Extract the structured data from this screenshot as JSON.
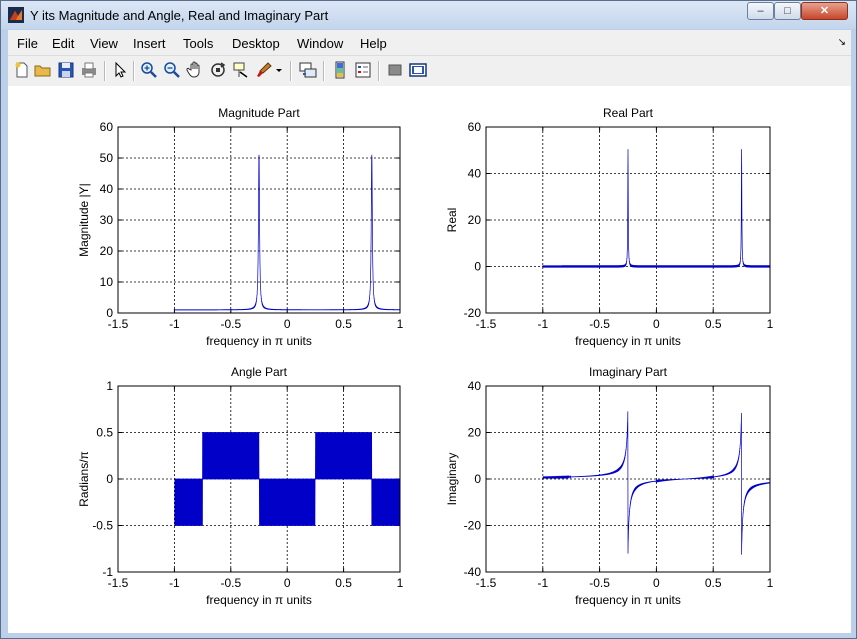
{
  "window": {
    "title": "Y its Magnitude and Angle, Real and Imaginary Part",
    "minimize_label": "–",
    "maximize_label": "□",
    "close_label": "✕"
  },
  "menu": {
    "items": [
      "File",
      "Edit",
      "View",
      "Insert",
      "Tools",
      "Desktop",
      "Window",
      "Help"
    ],
    "overflow_arrow": "↘"
  },
  "toolbar": {
    "icons": [
      "new-figure-icon",
      "open-file-icon",
      "save-icon",
      "print-icon",
      "edit-plot-arrow-icon",
      "zoom-in-icon",
      "zoom-out-icon",
      "pan-hand-icon",
      "rotate-3d-icon",
      "data-cursor-icon",
      "brush-icon",
      "brush-dropdown-icon",
      "link-plot-icon",
      "insert-colorbar-icon",
      "insert-legend-icon",
      "hide-plot-tools-icon",
      "show-plot-tools-icon"
    ]
  },
  "colors": {
    "trace": "#0000c8",
    "grid": "#000000",
    "titlebar": "#c9d9ee"
  },
  "chart_data": [
    {
      "type": "line",
      "title": "Magnitude Part",
      "xlabel": "frequency in π units",
      "ylabel": "Magnitude  |Y|",
      "xlim": [
        -1.5,
        1
      ],
      "ylim": [
        0,
        60
      ],
      "xticks": [
        "-1.5",
        "-1",
        "-0.5",
        "0",
        "0.5",
        "1"
      ],
      "yticks": [
        "0",
        "10",
        "20",
        "30",
        "40",
        "50",
        "60"
      ],
      "grid": true,
      "series": [
        {
          "kind": "magnitude",
          "x_range": [
            -1,
            1
          ],
          "peaks_at": [
            -0.25,
            0.75
          ],
          "peak_value": 51,
          "baseline": 1
        }
      ]
    },
    {
      "type": "line",
      "title": "Real Part",
      "xlabel": "frequency in π units",
      "ylabel": "Real",
      "xlim": [
        -1.5,
        1
      ],
      "ylim": [
        -20,
        60
      ],
      "xticks": [
        "-1.5",
        "-1",
        "-0.5",
        "0",
        "0.5",
        "1"
      ],
      "yticks": [
        "-20",
        "0",
        "20",
        "40",
        "60"
      ],
      "grid": true,
      "series": [
        {
          "kind": "real",
          "x_range": [
            -1,
            1
          ],
          "peaks_at": [
            -0.25,
            0.75
          ],
          "peak_value": 51,
          "baseline": 0.5
        }
      ]
    },
    {
      "type": "line",
      "title": "Angle Part",
      "xlabel": "frequency in π units",
      "ylabel": "Radians/π",
      "xlim": [
        -1.5,
        1
      ],
      "ylim": [
        -1,
        1
      ],
      "xticks": [
        "-1.5",
        "-1",
        "-0.5",
        "0",
        "0.5",
        "1"
      ],
      "yticks": [
        "-1",
        "-0.5",
        "0",
        "0.5",
        "1"
      ],
      "grid": true,
      "series": [
        {
          "kind": "angle",
          "x_range": [
            -1,
            1
          ],
          "levels": [
            -0.5,
            0.5
          ],
          "negative_bands": [
            [
              -1,
              -0.75
            ],
            [
              -0.25,
              0.25
            ],
            [
              0.75,
              1
            ]
          ],
          "positive_bands": [
            [
              -0.75,
              -0.25
            ],
            [
              0.25,
              0.75
            ]
          ]
        }
      ]
    },
    {
      "type": "line",
      "title": "Imaginary Part",
      "xlabel": "frequency in π units",
      "ylabel": "Imaginary",
      "xlim": [
        -1.5,
        1
      ],
      "ylim": [
        -40,
        40
      ],
      "xticks": [
        "-1.5",
        "-1",
        "-0.5",
        "0",
        "0.5",
        "1"
      ],
      "yticks": [
        "-40",
        "-20",
        "0",
        "20",
        "40"
      ],
      "grid": true,
      "series": [
        {
          "kind": "imaginary",
          "x_range": [
            -1,
            1
          ],
          "peaks_at": [
            -0.25,
            0.75
          ],
          "peak_value": 32,
          "trough_value": -32
        }
      ]
    }
  ]
}
